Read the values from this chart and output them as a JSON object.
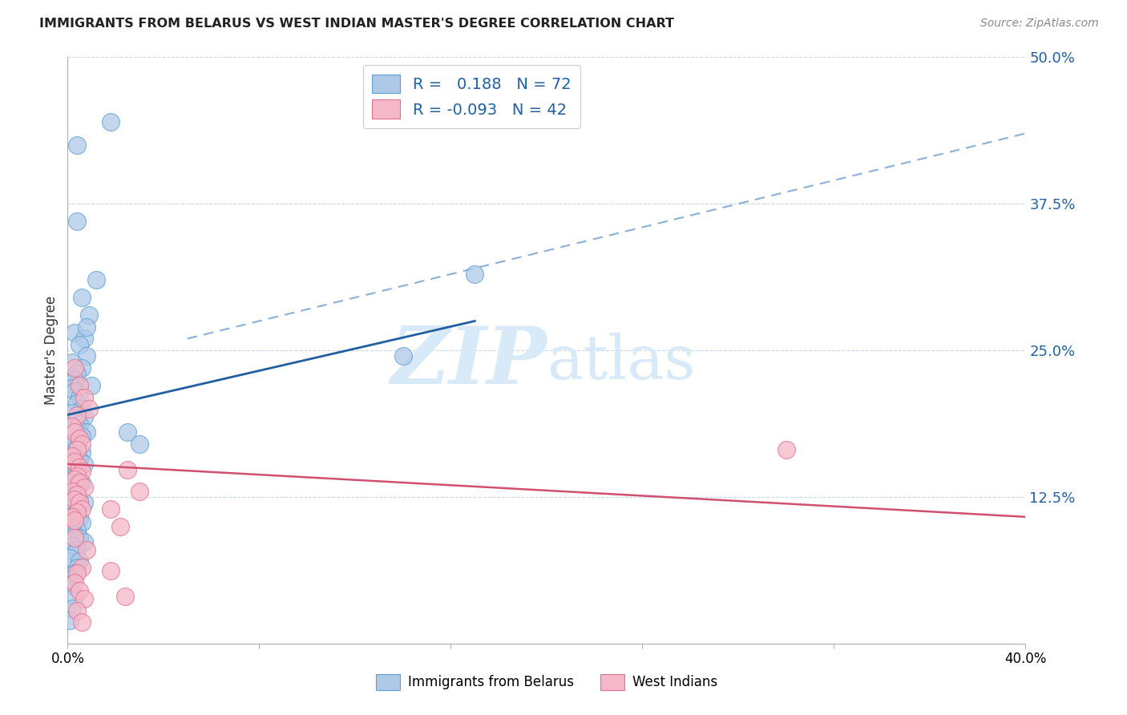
{
  "title": "IMMIGRANTS FROM BELARUS VS WEST INDIAN MASTER'S DEGREE CORRELATION CHART",
  "source_text": "Source: ZipAtlas.com",
  "ylabel": "Master's Degree",
  "xlim": [
    0.0,
    0.4
  ],
  "ylim": [
    0.0,
    0.5
  ],
  "yticks": [
    0.125,
    0.25,
    0.375,
    0.5
  ],
  "ytick_labels": [
    "12.5%",
    "25.0%",
    "37.5%",
    "50.0%"
  ],
  "legend_blue_label": "R =   0.188   N = 72",
  "legend_pink_label": "R = -0.093   N = 42",
  "legend_bottom_blue": "Immigrants from Belarus",
  "legend_bottom_pink": "West Indians",
  "blue_fill_color": "#aec9e8",
  "blue_edge_color": "#5a9fd4",
  "pink_fill_color": "#f5b8c8",
  "pink_edge_color": "#e07090",
  "blue_line_color": "#2060a0",
  "pink_line_color": "#d05070",
  "dashed_line_color": "#8ab0d8",
  "watermark_color": "#d8eaf8",
  "blue_line_x0": 0.0,
  "blue_line_y0": 0.195,
  "blue_line_x1": 0.17,
  "blue_line_y1": 0.275,
  "pink_line_x0": 0.0,
  "pink_line_y0": 0.153,
  "pink_line_x1": 0.4,
  "pink_line_y1": 0.108,
  "dashed_line_x0": 0.05,
  "dashed_line_y0": 0.26,
  "dashed_line_x1": 0.4,
  "dashed_line_y1": 0.435,
  "blue_scatter": [
    [
      0.004,
      0.425
    ],
    [
      0.018,
      0.445
    ],
    [
      0.004,
      0.36
    ],
    [
      0.012,
      0.31
    ],
    [
      0.006,
      0.295
    ],
    [
      0.009,
      0.28
    ],
    [
      0.003,
      0.265
    ],
    [
      0.007,
      0.26
    ],
    [
      0.005,
      0.255
    ],
    [
      0.008,
      0.245
    ],
    [
      0.002,
      0.24
    ],
    [
      0.006,
      0.235
    ],
    [
      0.004,
      0.23
    ],
    [
      0.003,
      0.225
    ],
    [
      0.001,
      0.222
    ],
    [
      0.002,
      0.218
    ],
    [
      0.003,
      0.215
    ],
    [
      0.005,
      0.21
    ],
    [
      0.004,
      0.205
    ],
    [
      0.006,
      0.2
    ],
    [
      0.002,
      0.197
    ],
    [
      0.007,
      0.193
    ],
    [
      0.003,
      0.19
    ],
    [
      0.005,
      0.187
    ],
    [
      0.004,
      0.183
    ],
    [
      0.008,
      0.18
    ],
    [
      0.006,
      0.177
    ],
    [
      0.003,
      0.173
    ],
    [
      0.002,
      0.17
    ],
    [
      0.004,
      0.167
    ],
    [
      0.006,
      0.163
    ],
    [
      0.003,
      0.16
    ],
    [
      0.005,
      0.157
    ],
    [
      0.007,
      0.153
    ],
    [
      0.002,
      0.15
    ],
    [
      0.004,
      0.147
    ],
    [
      0.003,
      0.143
    ],
    [
      0.005,
      0.14
    ],
    [
      0.006,
      0.137
    ],
    [
      0.002,
      0.133
    ],
    [
      0.004,
      0.13
    ],
    [
      0.003,
      0.127
    ],
    [
      0.005,
      0.123
    ],
    [
      0.007,
      0.12
    ],
    [
      0.002,
      0.117
    ],
    [
      0.004,
      0.113
    ],
    [
      0.003,
      0.11
    ],
    [
      0.005,
      0.107
    ],
    [
      0.006,
      0.103
    ],
    [
      0.002,
      0.1
    ],
    [
      0.004,
      0.097
    ],
    [
      0.003,
      0.093
    ],
    [
      0.005,
      0.09
    ],
    [
      0.007,
      0.087
    ],
    [
      0.002,
      0.083
    ],
    [
      0.004,
      0.08
    ],
    [
      0.003,
      0.077
    ],
    [
      0.001,
      0.073
    ],
    [
      0.005,
      0.07
    ],
    [
      0.004,
      0.065
    ],
    [
      0.003,
      0.06
    ],
    [
      0.002,
      0.055
    ],
    [
      0.001,
      0.05
    ],
    [
      0.003,
      0.04
    ],
    [
      0.002,
      0.03
    ],
    [
      0.001,
      0.02
    ],
    [
      0.17,
      0.315
    ],
    [
      0.14,
      0.245
    ],
    [
      0.008,
      0.27
    ],
    [
      0.01,
      0.22
    ],
    [
      0.025,
      0.18
    ],
    [
      0.03,
      0.17
    ]
  ],
  "pink_scatter": [
    [
      0.003,
      0.235
    ],
    [
      0.005,
      0.22
    ],
    [
      0.007,
      0.21
    ],
    [
      0.009,
      0.2
    ],
    [
      0.004,
      0.195
    ],
    [
      0.002,
      0.185
    ],
    [
      0.003,
      0.18
    ],
    [
      0.005,
      0.175
    ],
    [
      0.006,
      0.17
    ],
    [
      0.004,
      0.165
    ],
    [
      0.002,
      0.16
    ],
    [
      0.003,
      0.155
    ],
    [
      0.005,
      0.15
    ],
    [
      0.006,
      0.147
    ],
    [
      0.004,
      0.143
    ],
    [
      0.003,
      0.14
    ],
    [
      0.005,
      0.137
    ],
    [
      0.007,
      0.133
    ],
    [
      0.002,
      0.13
    ],
    [
      0.004,
      0.127
    ],
    [
      0.003,
      0.123
    ],
    [
      0.005,
      0.12
    ],
    [
      0.006,
      0.115
    ],
    [
      0.004,
      0.112
    ],
    [
      0.002,
      0.108
    ],
    [
      0.003,
      0.105
    ],
    [
      0.025,
      0.148
    ],
    [
      0.03,
      0.13
    ],
    [
      0.018,
      0.115
    ],
    [
      0.022,
      0.1
    ],
    [
      0.008,
      0.08
    ],
    [
      0.006,
      0.065
    ],
    [
      0.004,
      0.06
    ],
    [
      0.003,
      0.052
    ],
    [
      0.005,
      0.045
    ],
    [
      0.007,
      0.038
    ],
    [
      0.004,
      0.028
    ],
    [
      0.006,
      0.018
    ],
    [
      0.024,
      0.04
    ],
    [
      0.018,
      0.062
    ],
    [
      0.3,
      0.165
    ],
    [
      0.003,
      0.09
    ]
  ]
}
